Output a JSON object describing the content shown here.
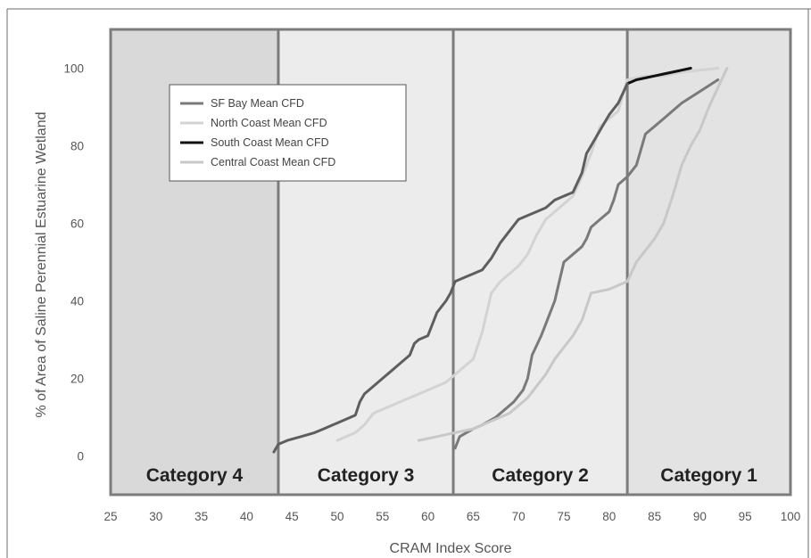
{
  "chart_data": {
    "type": "line",
    "title": "",
    "xlabel": "CRAM Index Score",
    "ylabel": "% of Area of Saline Perennial Estuarine Wetland",
    "xlim": [
      25,
      100
    ],
    "ylim": [
      -10,
      110
    ],
    "x_ticks": [
      "25",
      "30",
      "35",
      "40",
      "45",
      "50",
      "55",
      "60",
      "65",
      "70",
      "75",
      "80",
      "85",
      "90",
      "95",
      "100"
    ],
    "y_ticks": [
      "0",
      "20",
      "40",
      "60",
      "80",
      "100"
    ],
    "legend_position": "top-left",
    "categories": [
      {
        "label": "Category 4",
        "x_from": 25,
        "x_to": 43.5,
        "color": "#d9d9d9"
      },
      {
        "label": "Category 3",
        "x_from": 43.5,
        "x_to": 62.8,
        "color": "#ececec"
      },
      {
        "label": "Category 2",
        "x_from": 62.8,
        "x_to": 82,
        "color": "#ececec"
      },
      {
        "label": "Category 1",
        "x_from": 82,
        "x_to": 100,
        "color": "#e3e3e3"
      }
    ],
    "series": [
      {
        "name": "SF Bay Mean CFD",
        "color": "#7a7a7a",
        "points": [
          [
            63,
            2
          ],
          [
            63.5,
            5
          ],
          [
            65,
            7
          ],
          [
            66,
            8
          ],
          [
            67.5,
            10
          ],
          [
            68.5,
            12
          ],
          [
            69.5,
            14
          ],
          [
            70.5,
            17
          ],
          [
            71,
            20
          ],
          [
            71.5,
            26
          ],
          [
            72.5,
            31
          ],
          [
            73,
            34
          ],
          [
            74,
            40
          ],
          [
            75,
            50
          ],
          [
            76,
            52
          ],
          [
            77,
            54
          ],
          [
            77.5,
            56
          ],
          [
            78,
            59
          ],
          [
            79,
            61
          ],
          [
            80,
            63
          ],
          [
            80.5,
            66
          ],
          [
            81,
            70
          ],
          [
            82,
            72
          ],
          [
            83,
            75
          ],
          [
            84,
            83
          ],
          [
            85,
            85
          ],
          [
            86,
            87
          ],
          [
            87,
            89
          ],
          [
            88,
            91
          ],
          [
            90,
            94
          ],
          [
            92,
            97
          ]
        ]
      },
      {
        "name": "North Coast Mean CFD",
        "color": "#d3d3d3",
        "points": [
          [
            50,
            4
          ],
          [
            52,
            6
          ],
          [
            53,
            8
          ],
          [
            54,
            11
          ],
          [
            56,
            13
          ],
          [
            58,
            15
          ],
          [
            60,
            17
          ],
          [
            62,
            19
          ],
          [
            63,
            21
          ],
          [
            65,
            25
          ],
          [
            66,
            32
          ],
          [
            67,
            42
          ],
          [
            68,
            45
          ],
          [
            69,
            47
          ],
          [
            70,
            49
          ],
          [
            71,
            52
          ],
          [
            72,
            57
          ],
          [
            73,
            61
          ],
          [
            74,
            63
          ],
          [
            75,
            65
          ],
          [
            76,
            67
          ],
          [
            77,
            72
          ],
          [
            78,
            78
          ],
          [
            79,
            85
          ],
          [
            80,
            87
          ],
          [
            81,
            89
          ],
          [
            82,
            97
          ],
          [
            84,
            98
          ],
          [
            86,
            98
          ],
          [
            88,
            99
          ],
          [
            90,
            99.5
          ],
          [
            92,
            100
          ]
        ]
      },
      {
        "name": "South Coast Mean CFD",
        "color": "#111111",
        "points": [
          [
            82,
            96
          ],
          [
            83,
            97
          ],
          [
            84,
            97.5
          ],
          [
            85,
            98
          ],
          [
            86,
            98.5
          ],
          [
            87,
            99
          ],
          [
            88,
            99.5
          ],
          [
            89,
            100
          ]
        ]
      },
      {
        "name": "Central Coast Mean CFD",
        "color": "#c8c8c8",
        "points": [
          [
            59,
            4
          ],
          [
            61,
            5
          ],
          [
            63,
            6
          ],
          [
            65,
            7
          ],
          [
            67,
            9
          ],
          [
            69,
            11
          ],
          [
            71,
            15
          ],
          [
            72,
            18
          ],
          [
            73,
            21
          ],
          [
            74,
            25
          ],
          [
            75,
            28
          ],
          [
            76,
            31
          ],
          [
            77,
            35
          ],
          [
            78,
            42
          ],
          [
            80,
            43
          ],
          [
            82,
            45
          ],
          [
            83,
            50
          ],
          [
            84,
            53
          ],
          [
            85,
            56
          ],
          [
            86,
            60
          ],
          [
            87,
            67
          ],
          [
            88,
            75
          ],
          [
            89,
            80
          ],
          [
            90,
            84
          ],
          [
            91,
            90
          ],
          [
            92,
            95
          ],
          [
            93,
            100
          ]
        ]
      },
      {
        "name": "",
        "color": "#5e5e5e",
        "points": [
          [
            43,
            1
          ],
          [
            43.5,
            3
          ],
          [
            44.5,
            4
          ],
          [
            46,
            5
          ],
          [
            47.5,
            6
          ],
          [
            48.5,
            7
          ],
          [
            49.5,
            8
          ],
          [
            50.5,
            9
          ],
          [
            51.5,
            10
          ],
          [
            52,
            10.5
          ],
          [
            52.5,
            14
          ],
          [
            53,
            16
          ],
          [
            54,
            18
          ],
          [
            55,
            20
          ],
          [
            56,
            22
          ],
          [
            57,
            24
          ],
          [
            58,
            26
          ],
          [
            58.5,
            29
          ],
          [
            59,
            30
          ],
          [
            60,
            31
          ],
          [
            60.5,
            34
          ],
          [
            61,
            37
          ],
          [
            62,
            40
          ],
          [
            62.5,
            42
          ],
          [
            63,
            45
          ],
          [
            64,
            46
          ],
          [
            65,
            47
          ],
          [
            66,
            48
          ],
          [
            67,
            51
          ],
          [
            68,
            55
          ],
          [
            69,
            58
          ],
          [
            70,
            61
          ],
          [
            71,
            62
          ],
          [
            72,
            63
          ],
          [
            73,
            64
          ],
          [
            74,
            66
          ],
          [
            75,
            67
          ],
          [
            76,
            68
          ],
          [
            77,
            73
          ],
          [
            77.5,
            78
          ],
          [
            78,
            80
          ],
          [
            79,
            84
          ],
          [
            79.5,
            86
          ],
          [
            80,
            88
          ],
          [
            81,
            91
          ],
          [
            82,
            96
          ]
        ]
      }
    ]
  }
}
